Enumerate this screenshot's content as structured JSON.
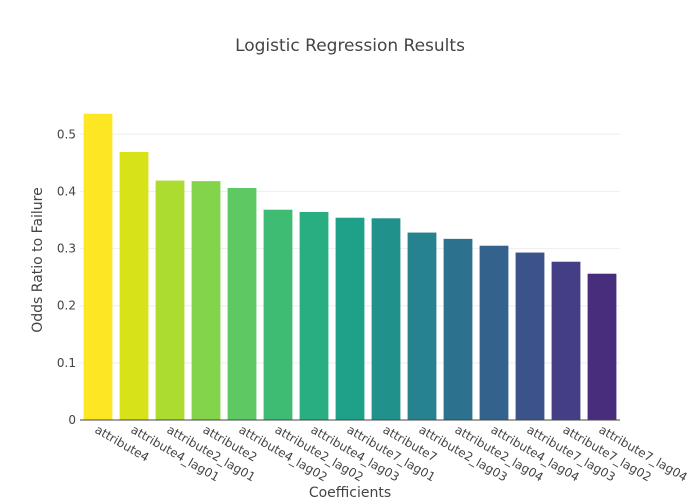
{
  "chart_data": {
    "type": "bar",
    "title": "Logistic Regression Results",
    "xlabel": "Coefficients",
    "ylabel": "Odds Ratio to Failure",
    "ylim": [
      0,
      0.56
    ],
    "yticks": [
      0,
      0.1,
      0.2,
      0.3,
      0.4,
      0.5
    ],
    "ytick_labels": [
      "0",
      "0.1",
      "0.2",
      "0.3",
      "0.4",
      "0.5"
    ],
    "grid": true,
    "legend": "none",
    "categories": [
      "attribute4",
      "attribute4_lag01",
      "attribute2_lag01",
      "attribute2",
      "attribute4_lag02",
      "attribute2_lag02",
      "attribute4_lag03",
      "attribute7_lag01",
      "attribute7",
      "attribute2_lag03",
      "attribute2_lag04",
      "attribute4_lag04",
      "attribute7_lag03",
      "attribute7_lag02",
      "attribute7_lag04"
    ],
    "values": [
      0.536,
      0.469,
      0.419,
      0.418,
      0.406,
      0.368,
      0.364,
      0.354,
      0.353,
      0.328,
      0.317,
      0.305,
      0.293,
      0.277,
      0.256
    ],
    "colors": [
      "#fde725",
      "#d8e219",
      "#addc30",
      "#84d44b",
      "#5ec962",
      "#3fbc73",
      "#28ae80",
      "#1fa088",
      "#21918c",
      "#26828e",
      "#2c728e",
      "#33638d",
      "#3b528b",
      "#433e85",
      "#472d7b"
    ]
  }
}
